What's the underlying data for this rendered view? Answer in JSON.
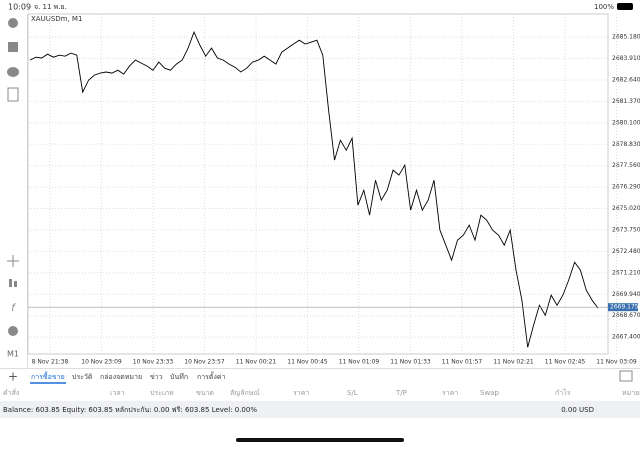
{
  "status_bar": {
    "time": "10:09",
    "date": "จ. 11 พ.ย.",
    "battery": "100%"
  },
  "chart": {
    "type": "line",
    "symbol": "XAUUSDm, M1",
    "timeframe": "M1",
    "color": "#000000",
    "grid": true,
    "x_labels": [
      "8 Nov 21:38",
      "10 Nov 23:09",
      "10 Nov 23:33",
      "10 Nov 23:57",
      "11 Nov 00:21",
      "11 Nov 00:45",
      "11 Nov 01:09",
      "11 Nov 01:33",
      "11 Nov 01:57",
      "11 Nov 02:21",
      "11 Nov 02:45",
      "11 Nov 03:09"
    ],
    "ylim": [
      2666.4,
      2686.55
    ],
    "yticks": [
      {
        "value": 2685.18,
        "label": "2685.180"
      },
      {
        "value": 2683.91,
        "label": "2683.910"
      },
      {
        "value": 2682.64,
        "label": "2682.640"
      },
      {
        "value": 2681.37,
        "label": "2681.370"
      },
      {
        "value": 2680.1,
        "label": "2680.100"
      },
      {
        "value": 2678.83,
        "label": "2678.830"
      },
      {
        "value": 2677.56,
        "label": "2677.560"
      },
      {
        "value": 2676.29,
        "label": "2676.290"
      },
      {
        "value": 2675.02,
        "label": "2675.020"
      },
      {
        "value": 2673.75,
        "label": "2673.750"
      },
      {
        "value": 2672.48,
        "label": "2672.480"
      },
      {
        "value": 2671.21,
        "label": "2671.210"
      },
      {
        "value": 2669.94,
        "label": "2669.940"
      },
      {
        "value": 2668.67,
        "label": "2668.670"
      },
      {
        "value": 2667.4,
        "label": "2667.400"
      }
    ],
    "last_price": 2669.175,
    "values": [
      2683.82,
      2683.99,
      2683.94,
      2684.17,
      2683.99,
      2684.11,
      2684.05,
      2684.23,
      2684.11,
      2681.92,
      2682.63,
      2682.93,
      2683.05,
      2683.11,
      2683.05,
      2683.22,
      2682.99,
      2683.46,
      2683.82,
      2683.64,
      2683.46,
      2683.22,
      2683.7,
      2683.34,
      2683.22,
      2683.58,
      2683.82,
      2684.53,
      2685.48,
      2684.71,
      2684.05,
      2684.53,
      2683.94,
      2683.82,
      2683.58,
      2683.4,
      2683.11,
      2683.34,
      2683.7,
      2683.82,
      2684.05,
      2683.82,
      2683.58,
      2684.29,
      2684.53,
      2684.77,
      2685.0,
      2684.77,
      2684.88,
      2685.0,
      2684.11,
      2680.85,
      2677.89,
      2679.07,
      2678.48,
      2679.19,
      2675.22,
      2676.11,
      2674.63,
      2676.7,
      2675.52,
      2676.11,
      2677.3,
      2677.0,
      2677.59,
      2674.93,
      2676.11,
      2674.93,
      2675.52,
      2676.7,
      2673.74,
      2672.85,
      2671.96,
      2673.15,
      2673.44,
      2674.04,
      2673.15,
      2674.63,
      2674.33,
      2673.74,
      2673.44,
      2672.85,
      2673.74,
      2671.37,
      2669.59,
      2666.8,
      2668.11,
      2669.29,
      2668.7,
      2669.89,
      2669.29,
      2669.89,
      2670.78,
      2671.84,
      2671.37,
      2670.18,
      2669.59,
      2669.12
    ]
  },
  "tabs": [
    "การซื้อขาย",
    "ประวัติ",
    "กล่องจดหมาย",
    "ข่าว",
    "บันทึก",
    "การตั้งค่า"
  ],
  "table_headers": [
    "คำสั่ง",
    "เวลา",
    "ประเภท",
    "ขนาด",
    "สัญลักษณ์",
    "ราคา",
    "S/L",
    "T/P",
    "ราคา",
    "Swap",
    "กำไร",
    "หมายเหตุ"
  ],
  "account": {
    "summary": "Balance: 603.85 Equity: 603.85 หลักประกัน: 0.00 ฟรี: 603.85 Level: 0.00%",
    "profit": "0.00 USD"
  }
}
